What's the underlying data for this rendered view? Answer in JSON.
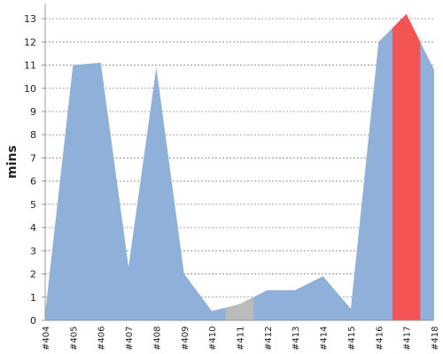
{
  "chart_data": {
    "type": "area",
    "title": "",
    "xlabel": "",
    "ylabel": "mins",
    "categories": [
      "#404",
      "#405",
      "#406",
      "#407",
      "#408",
      "#409",
      "#410",
      "#411",
      "#412",
      "#413",
      "#414",
      "#415",
      "#416",
      "#417",
      "#418"
    ],
    "values": [
      0.3,
      11.0,
      11.1,
      2.3,
      10.9,
      2.0,
      0.4,
      0.7,
      1.3,
      1.3,
      1.9,
      0.5,
      12.0,
      13.2,
      10.8
    ],
    "highlights": [
      {
        "category": "#411",
        "role": "neutral",
        "color": "#bbbbbb"
      },
      {
        "category": "#417",
        "role": "alert",
        "color": "#f25353"
      }
    ],
    "ylim": [
      0,
      13.5
    ],
    "yticks": [
      0,
      1,
      2,
      3,
      4,
      5,
      6,
      7,
      8,
      9,
      10,
      11,
      12,
      13
    ],
    "grid": "horizontal-dashed",
    "colors": {
      "area": "#8eb0d9",
      "neutral": "#bbbbbb",
      "alert": "#f25353",
      "grid": "#888888",
      "axis": "#999999"
    }
  }
}
